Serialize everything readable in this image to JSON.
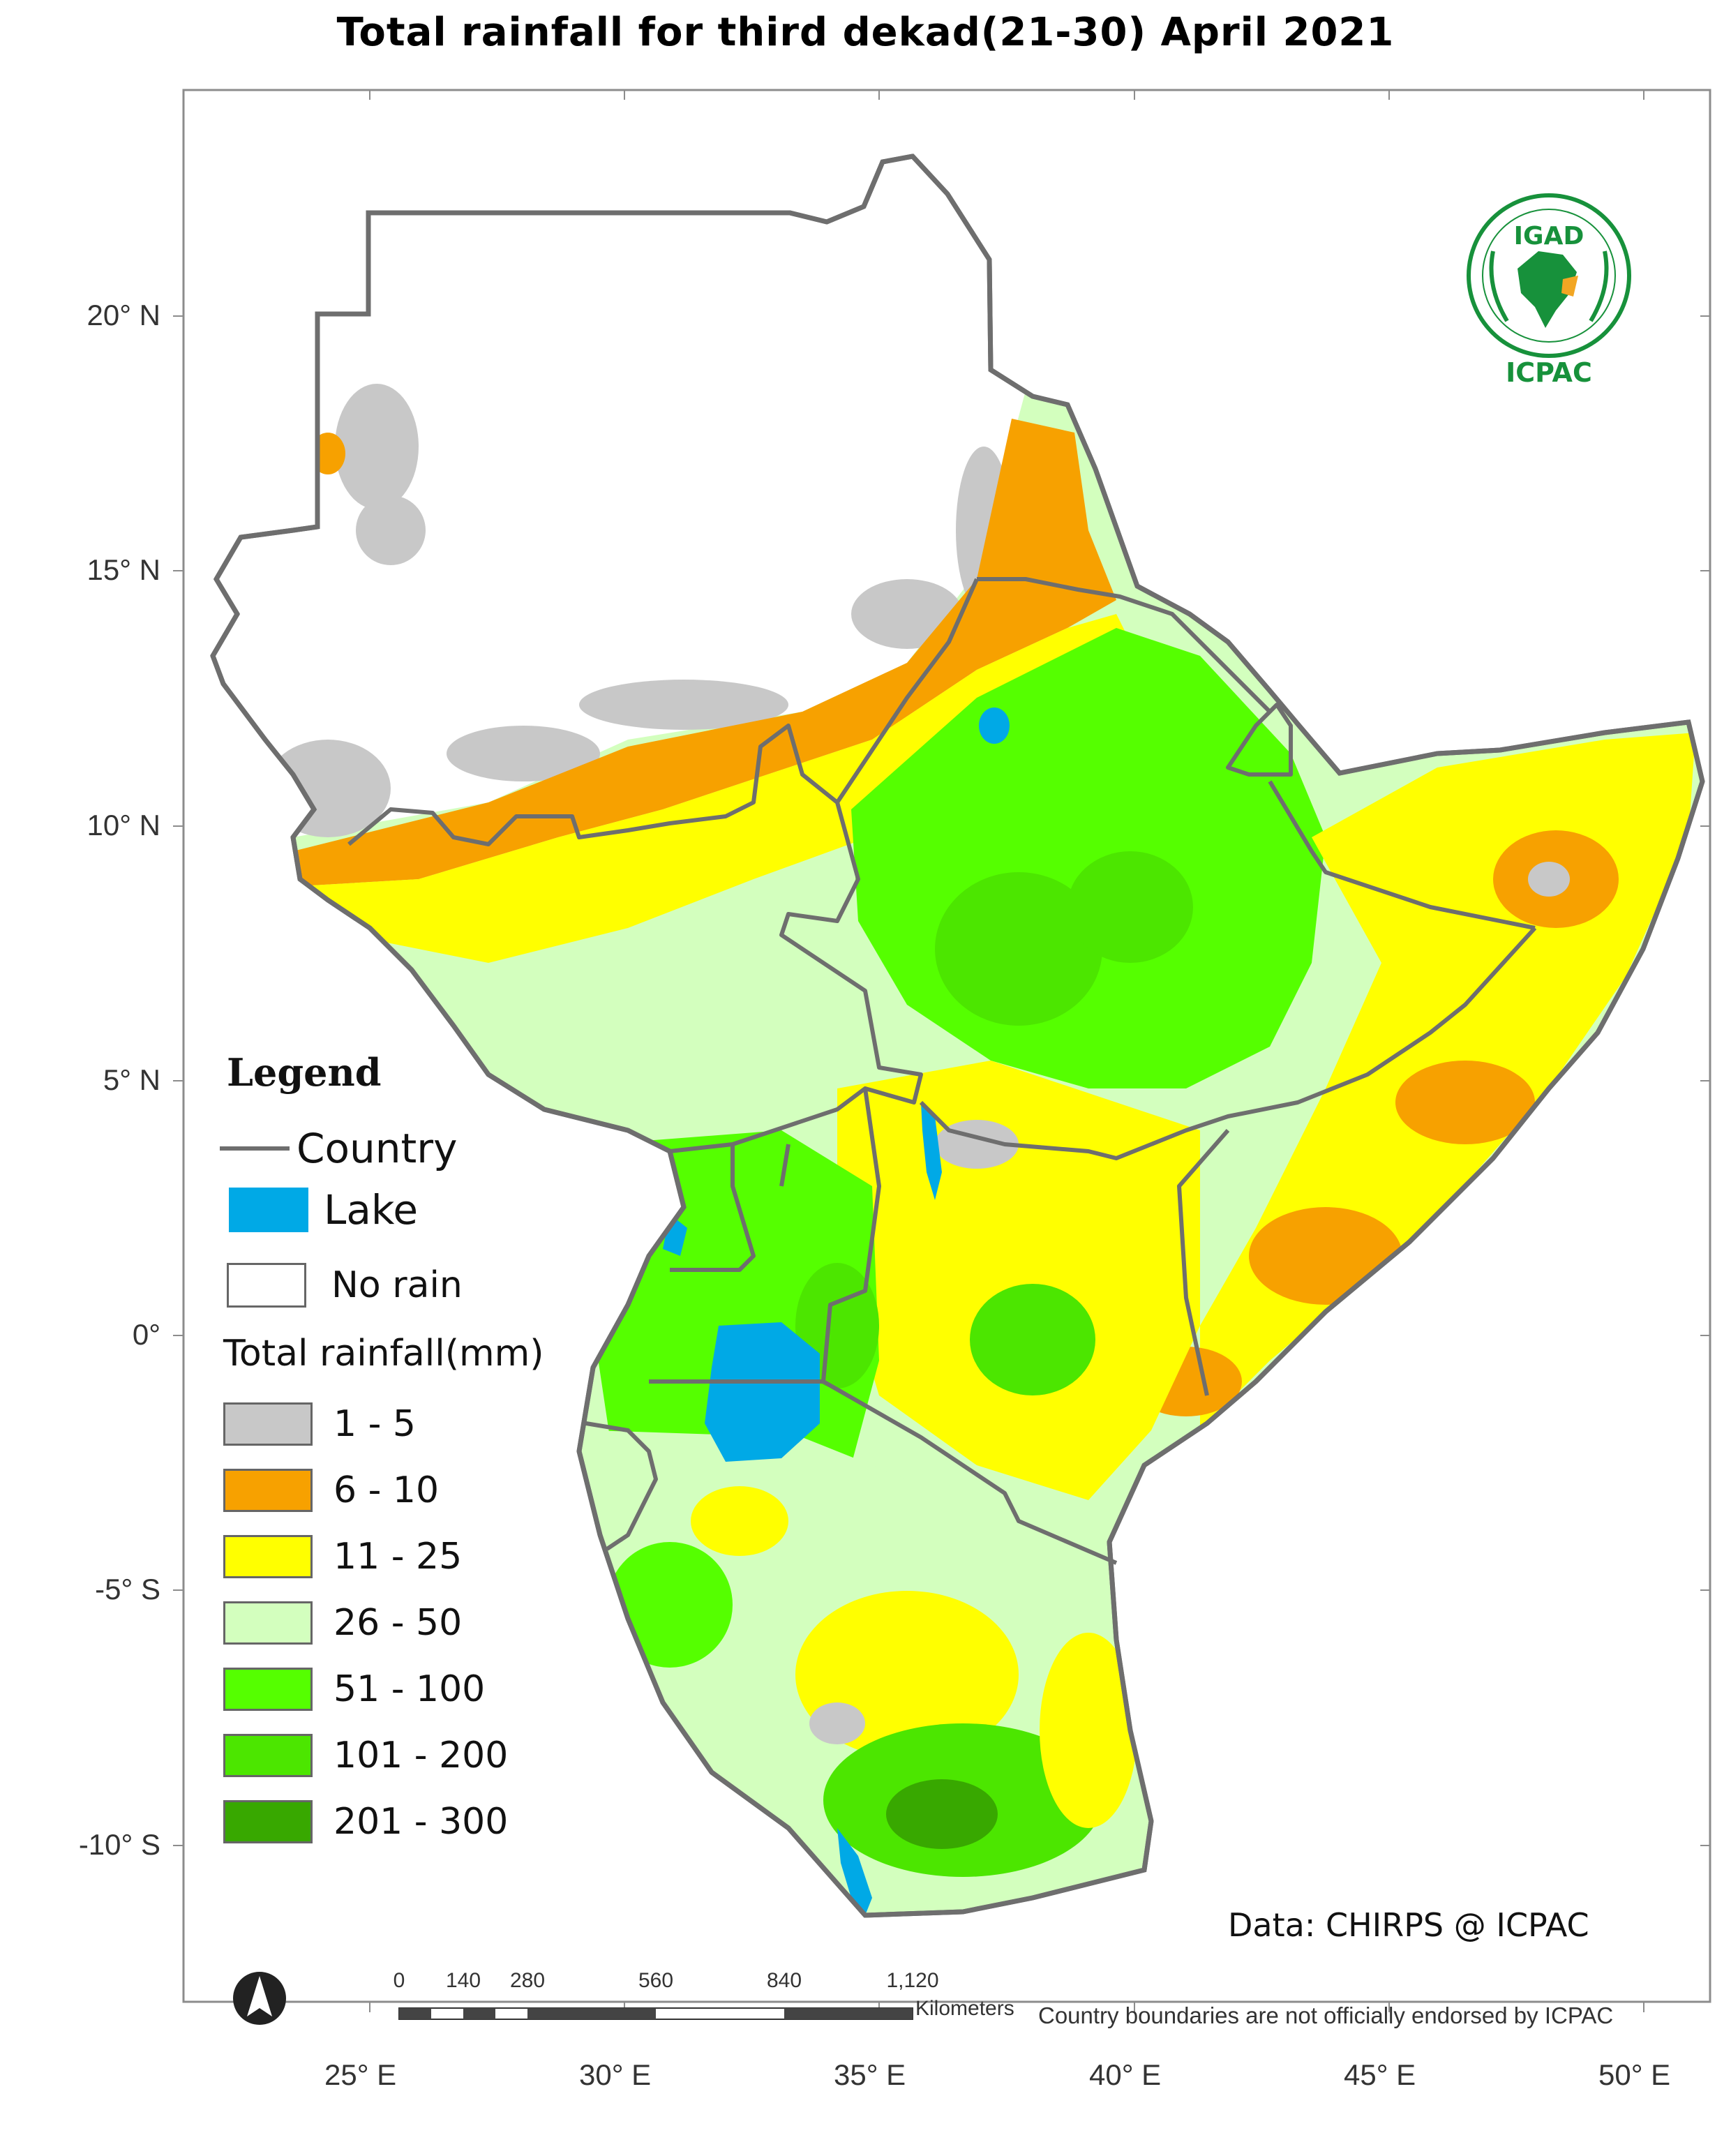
{
  "title": "Total rainfall for  third  dekad(21-30)  April 2021",
  "axes": {
    "latitude_labels": [
      "20° N",
      "15° N",
      "10° N",
      "5° N",
      "0°",
      "-5° S",
      "-10° S"
    ],
    "longitude_labels": [
      "25° E",
      "30° E",
      "35° E",
      "40° E",
      "45° E",
      "50° E"
    ]
  },
  "legend": {
    "title": "Legend",
    "country_label": "Country",
    "lake_label": "Lake",
    "no_rain_label": "No rain",
    "rainfall_title": "Total rainfall(mm)",
    "classes": [
      {
        "label": "1 - 5",
        "color": "#c8c8c8"
      },
      {
        "label": "6 - 10",
        "color": "#f7a100"
      },
      {
        "label": "11 - 25",
        "color": "#ffff00"
      },
      {
        "label": "26 - 50",
        "color": "#d3ffbe"
      },
      {
        "label": "51 - 100",
        "color": "#55ff00"
      },
      {
        "label": "101 - 200",
        "color": "#4ce600"
      },
      {
        "label": "201 - 300",
        "color": "#38a800"
      }
    ],
    "lake_color": "#00a9e6",
    "country_line_color": "#6e6e6e"
  },
  "scale_bar": {
    "ticks": [
      "0",
      "140",
      "280",
      "560",
      "840",
      "1,120"
    ],
    "unit": "Kilometers"
  },
  "north_arrow": "north-arrow-icon",
  "logo": {
    "top_text": "IGAD",
    "bottom_text": "ICPAC"
  },
  "credit": "Data: CHIRPS @ ICPAC",
  "disclaimer": "Country boundaries are not officially endorsed by ICPAC"
}
